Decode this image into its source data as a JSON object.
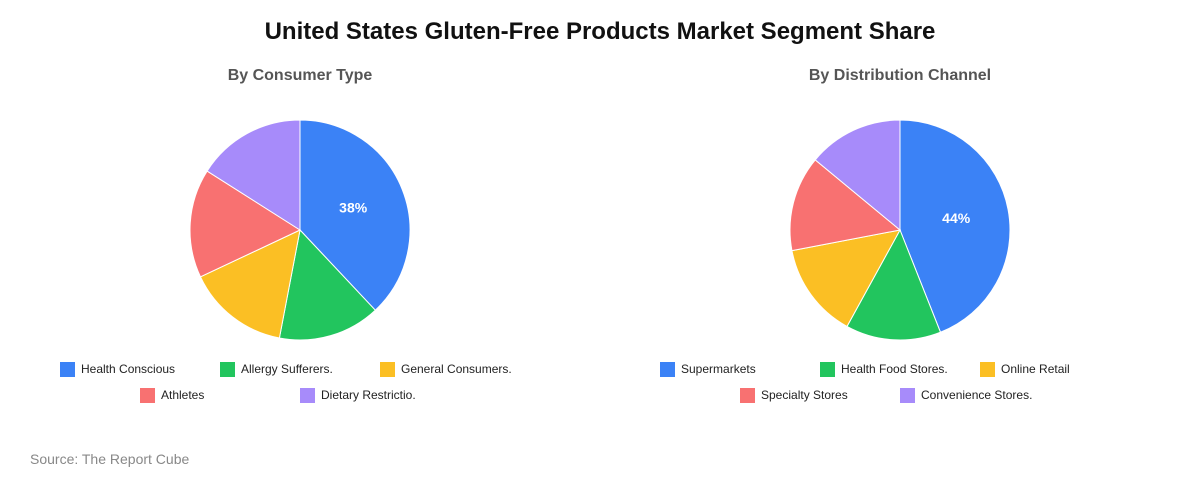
{
  "title": "United States Gluten-Free Products Market Segment Share",
  "source": "Source: The Report Cube",
  "colors": [
    "#3b82f6",
    "#22c55e",
    "#fbbf24",
    "#f87171",
    "#a78bfa"
  ],
  "chart_data": [
    {
      "type": "pie",
      "title": "By Consumer Type",
      "categories": [
        "Health Conscious",
        "Allergy Sufferers.",
        "General Consumers.",
        "Athletes",
        "Dietary Restrictio."
      ],
      "values": [
        38,
        15,
        15,
        16,
        16
      ],
      "data_labels": [
        "38%",
        "",
        "",
        "",
        ""
      ],
      "legend_position": "bottom"
    },
    {
      "type": "pie",
      "title": "By Distribution Channel",
      "categories": [
        "Supermarkets",
        "Health Food Stores.",
        "Online Retail",
        "Specialty Stores",
        "Convenience Stores."
      ],
      "values": [
        44,
        14,
        14,
        14,
        14
      ],
      "data_labels": [
        "44%",
        "",
        "",
        "",
        ""
      ],
      "legend_position": "bottom"
    }
  ]
}
